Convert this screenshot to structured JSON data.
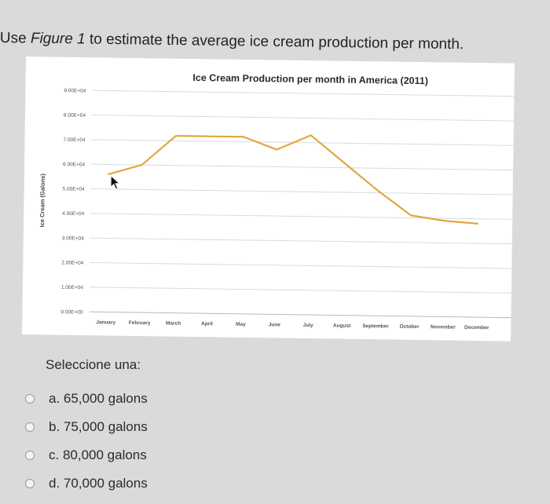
{
  "question": {
    "prefix": "Use ",
    "figure_ref": "Figure 1",
    "suffix": " to estimate the average ice cream production per month."
  },
  "chart_data": {
    "type": "line",
    "title": "Ice Cream Production per month in America (2011)",
    "xlabel": "",
    "ylabel": "Ice Cream (Galons)",
    "categories": [
      "January",
      "February",
      "March",
      "April",
      "May",
      "June",
      "July",
      "August",
      "September",
      "October",
      "November",
      "December"
    ],
    "series": [
      {
        "values": [
          56000,
          60000,
          72000,
          72000,
          72000,
          67000,
          73000,
          62000,
          51000,
          41000,
          39000,
          38000
        ],
        "color": "#e3a73d"
      }
    ],
    "ytick_labels": [
      "0.00E+00",
      "1.00E+04",
      "2.00E+04",
      "3.00E+04",
      "4.00E+04",
      "5.00E+04",
      "6.00E+04",
      "7.00E+04",
      "8.00E+04",
      "9.00E+04"
    ],
    "ylim": [
      0,
      90000
    ],
    "grid": true,
    "legend": "none"
  },
  "answers": {
    "prompt": "Seleccione una:",
    "options": [
      {
        "label": "a. 65,000 galons"
      },
      {
        "label": "b. 75,000 galons"
      },
      {
        "label": "c. 80,000 galons"
      },
      {
        "label": "d. 70,000 galons"
      }
    ]
  }
}
